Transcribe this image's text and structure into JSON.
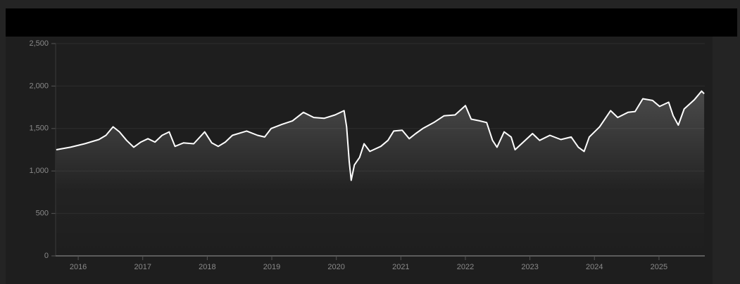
{
  "chart_data": {
    "type": "line",
    "x": [
      2015.66,
      2015.88,
      2016.1,
      2016.32,
      2016.43,
      2016.54,
      2016.64,
      2016.75,
      2016.86,
      2016.97,
      2017.08,
      2017.19,
      2017.3,
      2017.41,
      2017.5,
      2017.63,
      2017.79,
      2017.96,
      2018.07,
      2018.17,
      2018.28,
      2018.39,
      2018.61,
      2018.78,
      2018.89,
      2018.99,
      2019.16,
      2019.32,
      2019.49,
      2019.65,
      2019.81,
      2019.98,
      2020.12,
      2020.16,
      2020.2,
      2020.23,
      2020.28,
      2020.36,
      2020.43,
      2020.52,
      2020.69,
      2020.8,
      2020.89,
      2021.02,
      2021.13,
      2021.23,
      2021.34,
      2021.51,
      2021.67,
      2021.84,
      2022.0,
      2022.09,
      2022.22,
      2022.33,
      2022.42,
      2022.49,
      2022.6,
      2022.71,
      2022.77,
      2022.87,
      2023.04,
      2023.15,
      2023.31,
      2023.48,
      2023.64,
      2023.75,
      2023.84,
      2023.92,
      2024.08,
      2024.25,
      2024.36,
      2024.52,
      2024.63,
      2024.75,
      2024.9,
      2025.01,
      2025.15,
      2025.22,
      2025.3,
      2025.39,
      2025.55,
      2025.66,
      2025.7
    ],
    "values": [
      1250,
      1280,
      1320,
      1370,
      1420,
      1520,
      1460,
      1360,
      1280,
      1340,
      1380,
      1340,
      1420,
      1460,
      1290,
      1330,
      1320,
      1460,
      1330,
      1290,
      1340,
      1420,
      1470,
      1420,
      1400,
      1500,
      1550,
      1590,
      1690,
      1630,
      1620,
      1660,
      1710,
      1520,
      1110,
      890,
      1070,
      1160,
      1320,
      1230,
      1290,
      1360,
      1470,
      1480,
      1380,
      1440,
      1500,
      1570,
      1650,
      1660,
      1770,
      1610,
      1590,
      1570,
      1360,
      1280,
      1460,
      1400,
      1250,
      1320,
      1440,
      1360,
      1420,
      1370,
      1400,
      1280,
      1230,
      1400,
      1520,
      1710,
      1630,
      1690,
      1700,
      1850,
      1830,
      1760,
      1810,
      1650,
      1540,
      1730,
      1840,
      1940,
      1910
    ],
    "color": "#ffffff",
    "xlim": [
      2015.65,
      2025.71
    ],
    "xticks": [
      2016,
      2017,
      2018,
      2019,
      2020,
      2021,
      2022,
      2023,
      2024,
      2025
    ],
    "ylim": [
      0,
      2500
    ],
    "yticks": [
      0,
      500,
      {
        "value": 1000,
        "label": "1,000"
      },
      {
        "value": 1500,
        "label": "1,500"
      },
      {
        "value": 2000,
        "label": "2,000"
      },
      {
        "value": 2500,
        "label": "2,500"
      }
    ],
    "grid": true
  }
}
